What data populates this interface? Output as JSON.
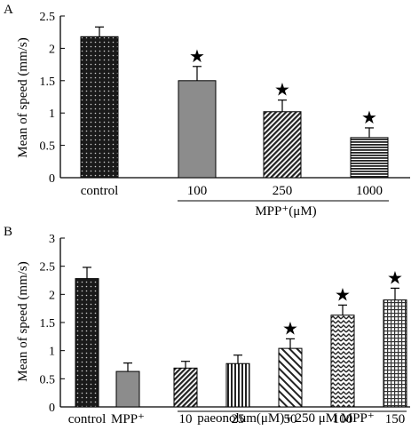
{
  "chart_data": [
    {
      "type": "bar",
      "panel_label": "A",
      "ylabel": "Mean of speed (mm/s)",
      "ylim": [
        0,
        2.5
      ],
      "yticks": [
        "0",
        "0.5",
        "1",
        "1.5",
        "2",
        "2.5"
      ],
      "categories": [
        "control",
        "100",
        "250",
        "1000"
      ],
      "values": [
        2.18,
        1.5,
        1.02,
        0.62
      ],
      "errors": [
        0.15,
        0.22,
        0.18,
        0.15
      ],
      "significant": [
        false,
        true,
        true,
        true
      ],
      "patterns": [
        "dots-dark",
        "solid-gray",
        "diagonal-dense",
        "hlines-dense"
      ],
      "group_label": "MPP⁺(μM)",
      "marker": "★"
    },
    {
      "type": "bar",
      "panel_label": "B",
      "ylabel": "Mean of speed (mm/s)",
      "ylim": [
        0,
        3
      ],
      "yticks": [
        "0",
        "0.5",
        "1",
        "1.5",
        "2",
        "2.5",
        "3"
      ],
      "categories": [
        "control",
        "MPP⁺",
        "10",
        "25",
        "50",
        "100",
        "150"
      ],
      "values": [
        2.28,
        0.63,
        0.69,
        0.77,
        1.04,
        1.63,
        1.9
      ],
      "errors": [
        0.2,
        0.15,
        0.12,
        0.15,
        0.17,
        0.18,
        0.21
      ],
      "significant": [
        false,
        false,
        false,
        false,
        true,
        true,
        true
      ],
      "patterns": [
        "dots-dark",
        "solid-gray",
        "diagonal-dense",
        "vlines",
        "diagonal-sparse",
        "zigzag",
        "grid"
      ],
      "group_label": "paeonolum(μM)+ 250 μM MPP⁺",
      "marker": "★"
    }
  ]
}
